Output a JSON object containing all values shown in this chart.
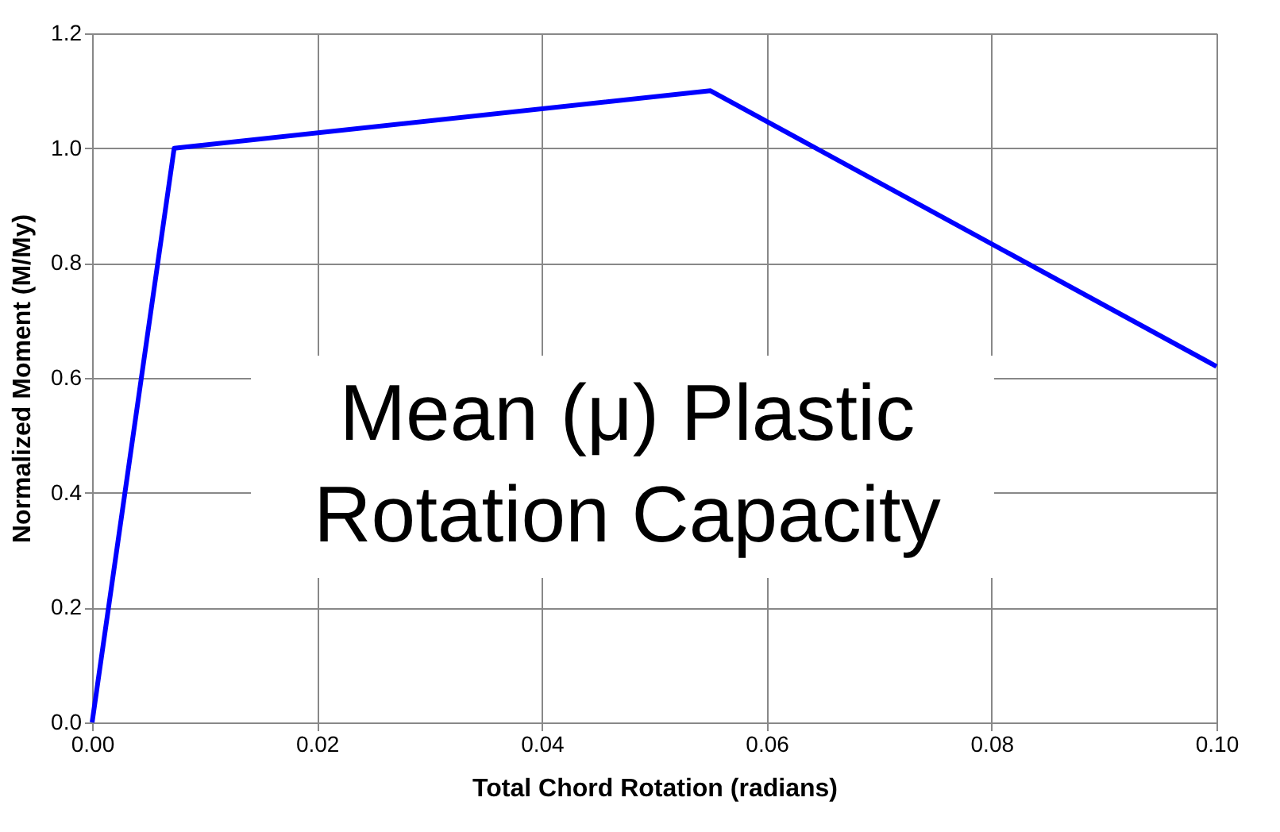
{
  "chart_data": {
    "type": "line",
    "xlabel": "Total Chord Rotation (radians)",
    "ylabel": "Normalized Moment (M/My)",
    "x": [
      0,
      0.0073,
      0.055,
      0.1
    ],
    "series": [
      {
        "color": "#0000ff",
        "values": [
          0,
          1.0,
          1.1,
          0.62
        ]
      }
    ],
    "xlim": [
      0,
      0.1
    ],
    "xticks": [
      {
        "value": 0,
        "label": "0.00"
      },
      {
        "value": 0.02,
        "label": "0.02"
      },
      {
        "value": 0.04,
        "label": "0.04"
      },
      {
        "value": 0.06,
        "label": "0.06"
      },
      {
        "value": 0.08,
        "label": "0.08"
      },
      {
        "value": 0.1,
        "label": "0.10"
      }
    ],
    "ylim": [
      0,
      1.2
    ],
    "yticks": [
      {
        "value": 0,
        "label": "0.0"
      },
      {
        "value": 0.2,
        "label": "0.2"
      },
      {
        "value": 0.4,
        "label": "0.4"
      },
      {
        "value": 0.6,
        "label": "0.6"
      },
      {
        "value": 0.8,
        "label": "0.8"
      },
      {
        "value": 1.0,
        "label": "1.0"
      },
      {
        "value": 1.2,
        "label": "1.2"
      }
    ],
    "grid": true,
    "marker": "none",
    "line_style": "solid",
    "annotations": [
      "Mean (μ) Plastic",
      "Rotation Capacity"
    ]
  }
}
